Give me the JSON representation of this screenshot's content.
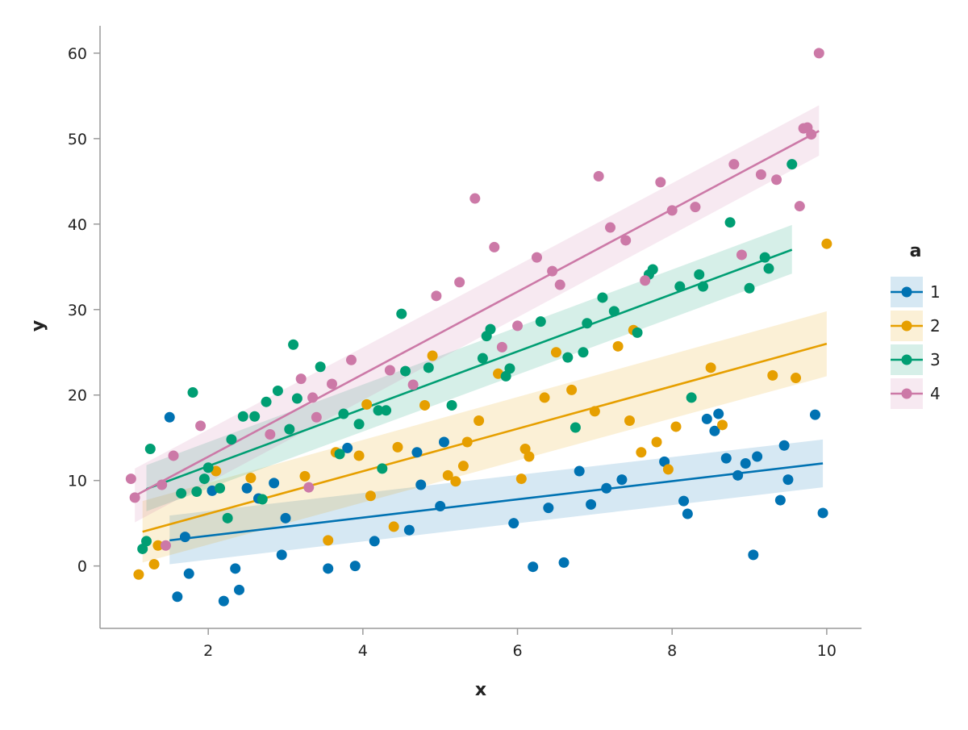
{
  "chart_data": {
    "type": "scatter",
    "title": "",
    "xlabel": "x",
    "ylabel": "y",
    "xlim": [
      0.6,
      10.45
    ],
    "ylim": [
      -7.3,
      63.2
    ],
    "xticks": [
      2,
      4,
      6,
      8,
      10
    ],
    "yticks": [
      0,
      10,
      20,
      30,
      40,
      50,
      60
    ],
    "grid": false,
    "legend": {
      "title": "a",
      "placement": "right"
    },
    "series": [
      {
        "name": "1",
        "color": "#0072b2",
        "points": [
          [
            1.5,
            17.4
          ],
          [
            1.6,
            -3.6
          ],
          [
            1.7,
            3.4
          ],
          [
            1.75,
            -0.9
          ],
          [
            2.05,
            8.8
          ],
          [
            2.2,
            -4.1
          ],
          [
            2.35,
            -0.3
          ],
          [
            2.4,
            -2.8
          ],
          [
            2.5,
            9.1
          ],
          [
            2.65,
            7.9
          ],
          [
            2.85,
            9.7
          ],
          [
            2.95,
            1.3
          ],
          [
            3.0,
            5.6
          ],
          [
            3.55,
            -0.3
          ],
          [
            3.8,
            13.8
          ],
          [
            3.9,
            0.0
          ],
          [
            4.15,
            2.9
          ],
          [
            4.6,
            4.2
          ],
          [
            4.7,
            13.3
          ],
          [
            4.75,
            9.5
          ],
          [
            5.0,
            7.0
          ],
          [
            5.05,
            14.5
          ],
          [
            5.95,
            5.0
          ],
          [
            6.2,
            -0.1
          ],
          [
            6.4,
            6.8
          ],
          [
            6.6,
            0.4
          ],
          [
            6.8,
            11.1
          ],
          [
            6.95,
            7.2
          ],
          [
            7.15,
            9.1
          ],
          [
            7.35,
            10.1
          ],
          [
            7.9,
            12.2
          ],
          [
            8.15,
            7.6
          ],
          [
            8.2,
            6.1
          ],
          [
            8.45,
            17.2
          ],
          [
            8.55,
            15.8
          ],
          [
            8.6,
            17.8
          ],
          [
            8.7,
            12.6
          ],
          [
            8.85,
            10.6
          ],
          [
            8.95,
            12.0
          ],
          [
            9.05,
            1.3
          ],
          [
            9.1,
            12.8
          ],
          [
            9.4,
            7.7
          ],
          [
            9.45,
            14.1
          ],
          [
            9.5,
            10.1
          ],
          [
            9.85,
            17.7
          ],
          [
            9.95,
            6.2
          ]
        ],
        "fit": {
          "x": [
            1.5,
            9.95
          ],
          "y": [
            3.0,
            12.0
          ]
        },
        "band": {
          "x": [
            1.5,
            9.95
          ],
          "lower": [
            0.2,
            9.2
          ],
          "upper": [
            5.9,
            14.8
          ]
        }
      },
      {
        "name": "2",
        "color": "#e69f00",
        "points": [
          [
            1.1,
            -1.0
          ],
          [
            1.3,
            0.2
          ],
          [
            1.35,
            2.4
          ],
          [
            2.1,
            11.1
          ],
          [
            2.55,
            10.3
          ],
          [
            3.25,
            10.5
          ],
          [
            3.55,
            3.0
          ],
          [
            3.65,
            13.3
          ],
          [
            3.95,
            12.9
          ],
          [
            4.05,
            18.9
          ],
          [
            4.1,
            8.2
          ],
          [
            4.4,
            4.6
          ],
          [
            4.45,
            13.9
          ],
          [
            4.8,
            18.8
          ],
          [
            4.9,
            24.6
          ],
          [
            5.1,
            10.6
          ],
          [
            5.2,
            9.9
          ],
          [
            5.3,
            11.7
          ],
          [
            5.35,
            14.5
          ],
          [
            5.5,
            17.0
          ],
          [
            5.75,
            22.5
          ],
          [
            6.05,
            10.2
          ],
          [
            6.1,
            13.7
          ],
          [
            6.15,
            12.8
          ],
          [
            6.35,
            19.7
          ],
          [
            6.5,
            25.0
          ],
          [
            6.7,
            20.6
          ],
          [
            7.0,
            18.1
          ],
          [
            7.3,
            25.7
          ],
          [
            7.45,
            17.0
          ],
          [
            7.5,
            27.6
          ],
          [
            7.6,
            13.3
          ],
          [
            7.8,
            14.5
          ],
          [
            7.95,
            11.3
          ],
          [
            8.05,
            16.3
          ],
          [
            8.5,
            23.2
          ],
          [
            8.65,
            16.5
          ],
          [
            9.3,
            22.3
          ],
          [
            9.6,
            22.0
          ],
          [
            10.0,
            37.7
          ]
        ],
        "fit": {
          "x": [
            1.15,
            10.0
          ],
          "y": [
            4.0,
            26.0
          ]
        },
        "band": {
          "x": [
            1.15,
            10.0
          ],
          "lower": [
            0.4,
            22.2
          ],
          "upper": [
            7.6,
            29.8
          ]
        }
      },
      {
        "name": "3",
        "color": "#009e73",
        "points": [
          [
            1.15,
            2.0
          ],
          [
            1.2,
            2.9
          ],
          [
            1.25,
            13.7
          ],
          [
            1.65,
            8.5
          ],
          [
            1.8,
            20.3
          ],
          [
            1.85,
            8.7
          ],
          [
            1.95,
            10.2
          ],
          [
            2.0,
            11.5
          ],
          [
            2.15,
            9.1
          ],
          [
            2.25,
            5.6
          ],
          [
            2.3,
            14.8
          ],
          [
            2.45,
            17.5
          ],
          [
            2.6,
            17.5
          ],
          [
            2.7,
            7.8
          ],
          [
            2.75,
            19.2
          ],
          [
            2.9,
            20.5
          ],
          [
            3.05,
            16.0
          ],
          [
            3.1,
            25.9
          ],
          [
            3.15,
            19.6
          ],
          [
            3.45,
            23.3
          ],
          [
            3.7,
            13.1
          ],
          [
            3.75,
            17.8
          ],
          [
            3.95,
            16.6
          ],
          [
            4.2,
            18.2
          ],
          [
            4.25,
            11.4
          ],
          [
            4.3,
            18.2
          ],
          [
            4.5,
            29.5
          ],
          [
            4.55,
            22.8
          ],
          [
            4.85,
            23.2
          ],
          [
            5.15,
            18.8
          ],
          [
            5.55,
            24.3
          ],
          [
            5.6,
            26.9
          ],
          [
            5.65,
            27.7
          ],
          [
            5.85,
            22.2
          ],
          [
            5.9,
            23.1
          ],
          [
            6.3,
            28.6
          ],
          [
            6.65,
            24.4
          ],
          [
            6.75,
            16.2
          ],
          [
            6.85,
            25.0
          ],
          [
            6.9,
            28.4
          ],
          [
            7.1,
            31.4
          ],
          [
            7.25,
            29.8
          ],
          [
            7.55,
            27.3
          ],
          [
            7.7,
            34.1
          ],
          [
            7.75,
            34.7
          ],
          [
            8.1,
            32.7
          ],
          [
            8.25,
            19.7
          ],
          [
            8.35,
            34.1
          ],
          [
            8.4,
            32.7
          ],
          [
            8.75,
            40.2
          ],
          [
            9.0,
            32.5
          ],
          [
            9.2,
            36.1
          ],
          [
            9.25,
            34.8
          ],
          [
            9.55,
            47.0
          ]
        ],
        "fit": {
          "x": [
            1.2,
            9.55
          ],
          "y": [
            9.0,
            37.0
          ]
        },
        "band": {
          "x": [
            1.2,
            9.55
          ],
          "lower": [
            6.4,
            34.2
          ],
          "upper": [
            11.8,
            39.9
          ]
        }
      },
      {
        "name": "4",
        "color": "#cc79a7",
        "points": [
          [
            1.0,
            10.2
          ],
          [
            1.05,
            8.0
          ],
          [
            1.4,
            9.5
          ],
          [
            1.45,
            2.4
          ],
          [
            1.55,
            12.9
          ],
          [
            1.9,
            16.4
          ],
          [
            2.8,
            15.4
          ],
          [
            3.2,
            21.9
          ],
          [
            3.3,
            9.2
          ],
          [
            3.35,
            19.7
          ],
          [
            3.4,
            17.4
          ],
          [
            3.6,
            21.3
          ],
          [
            3.85,
            24.1
          ],
          [
            4.35,
            22.9
          ],
          [
            4.65,
            21.2
          ],
          [
            4.95,
            31.6
          ],
          [
            5.25,
            33.2
          ],
          [
            5.45,
            43.0
          ],
          [
            5.7,
            37.3
          ],
          [
            5.8,
            25.6
          ],
          [
            6.0,
            28.1
          ],
          [
            6.25,
            36.1
          ],
          [
            6.45,
            34.5
          ],
          [
            6.55,
            32.9
          ],
          [
            7.05,
            45.6
          ],
          [
            7.2,
            39.6
          ],
          [
            7.4,
            38.1
          ],
          [
            7.65,
            33.4
          ],
          [
            7.85,
            44.9
          ],
          [
            8.0,
            41.6
          ],
          [
            8.3,
            42.0
          ],
          [
            8.8,
            47.0
          ],
          [
            8.9,
            36.4
          ],
          [
            9.15,
            45.8
          ],
          [
            9.35,
            45.2
          ],
          [
            9.65,
            42.1
          ],
          [
            9.7,
            51.2
          ],
          [
            9.75,
            51.3
          ],
          [
            9.8,
            50.5
          ],
          [
            9.9,
            60.0
          ]
        ],
        "fit": {
          "x": [
            1.05,
            9.9
          ],
          "y": [
            8.2,
            50.9
          ]
        },
        "band": {
          "x": [
            1.05,
            9.9
          ],
          "lower": [
            5.1,
            48.0
          ],
          "upper": [
            11.4,
            53.9
          ]
        }
      }
    ]
  }
}
